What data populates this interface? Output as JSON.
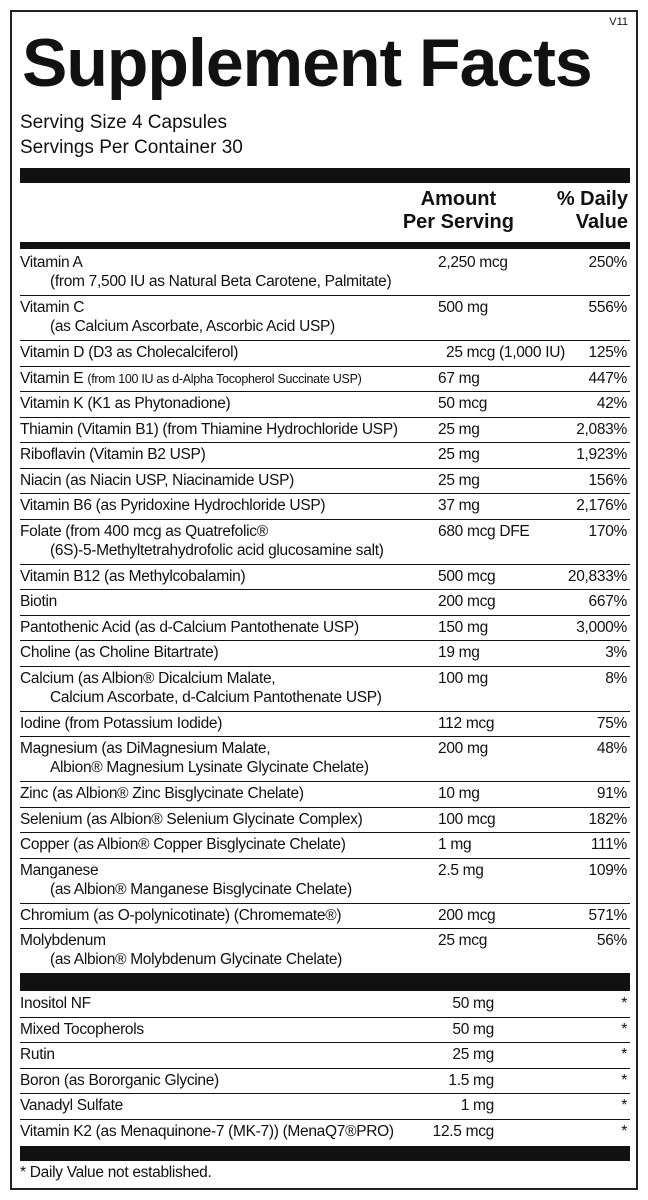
{
  "version": "V11",
  "title": "Supplement Facts",
  "serving_size": "Serving Size 4 Capsules",
  "servings_per_container": "Servings Per Container 30",
  "header": {
    "amount": [
      "Amount",
      "Per Serving"
    ],
    "daily_value": [
      "% Daily",
      "Value"
    ]
  },
  "nutrients": [
    {
      "name": "Vitamin A",
      "line2": "(from 7,500 IU as Natural Beta Carotene, Palmitate)",
      "amount": "2,250 mcg",
      "dv": "250%"
    },
    {
      "name": "Vitamin C",
      "line2": "(as Calcium Ascorbate, Ascorbic Acid USP)",
      "amount": "500 mg",
      "dv": "556%"
    },
    {
      "name": "Vitamin D (D3 as Cholecalciferol)",
      "amount": "25 mcg (1,000 IU)",
      "dv": "125%"
    },
    {
      "name": "Vitamin E",
      "name_note": "(from 100 IU as d-Alpha Tocopherol Succinate USP)",
      "amount": "67 mg",
      "dv": "447%"
    },
    {
      "name": "Vitamin K (K1 as Phytonadione)",
      "amount": "50 mcg",
      "dv": "42%"
    },
    {
      "name": "Thiamin (Vitamin B1) (from Thiamine Hydrochloride USP)",
      "amount": "25 mg",
      "dv": "2,083%"
    },
    {
      "name": "Riboflavin (Vitamin B2 USP)",
      "amount": "25 mg",
      "dv": "1,923%"
    },
    {
      "name": "Niacin (as Niacin USP, Niacinamide USP)",
      "amount": "25 mg",
      "dv": "156%"
    },
    {
      "name": "Vitamin B6 (as Pyridoxine Hydrochloride USP)",
      "amount": "37 mg",
      "dv": "2,176%"
    },
    {
      "name": "Folate (from 400 mcg as Quatrefolic®",
      "line2": "(6S)-5-Methyltetrahydrofolic acid glucosamine salt)",
      "amount": "680 mcg DFE",
      "dv": "170%"
    },
    {
      "name": "Vitamin B12 (as Methylcobalamin)",
      "amount": "500 mcg",
      "dv": "20,833%"
    },
    {
      "name": "Biotin",
      "amount": "200 mcg",
      "dv": "667%"
    },
    {
      "name": "Pantothenic Acid (as d-Calcium Pantothenate USP)",
      "amount": "150 mg",
      "dv": "3,000%"
    },
    {
      "name": "Choline (as Choline Bitartrate)",
      "amount": "19 mg",
      "dv": "3%"
    },
    {
      "name": "Calcium (as Albion® Dicalcium Malate,",
      "line2": "Calcium Ascorbate, d-Calcium Pantothenate USP)",
      "amount": "100 mg",
      "dv": "8%"
    },
    {
      "name": "Iodine (from Potassium Iodide)",
      "amount": "112 mcg",
      "dv": "75%"
    },
    {
      "name": "Magnesium (as DiMagnesium Malate,",
      "line2": "Albion® Magnesium Lysinate Glycinate Chelate)",
      "amount": "200 mg",
      "dv": "48%"
    },
    {
      "name": "Zinc (as Albion® Zinc Bisglycinate Chelate)",
      "amount": "10 mg",
      "dv": "91%"
    },
    {
      "name": "Selenium (as Albion® Selenium Glycinate Complex)",
      "amount": "100 mcg",
      "dv": "182%"
    },
    {
      "name": "Copper (as Albion® Copper Bisglycinate Chelate)",
      "amount": "1 mg",
      "dv": "111%"
    },
    {
      "name": "Manganese",
      "line2": "(as Albion® Manganese Bisglycinate Chelate)",
      "amount": "2.5 mg",
      "dv": "109%"
    },
    {
      "name": "Chromium (as O-polynicotinate) (Chromemate®)",
      "amount": "200 mcg",
      "dv": "571%"
    },
    {
      "name": "Molybdenum",
      "line2": "(as Albion® Molybdenum Glycinate Chelate)",
      "amount": "25 mcg",
      "dv": "56%"
    }
  ],
  "other_ingredients": [
    {
      "name": "Inositol NF",
      "amount": "50 mg",
      "dv": "*"
    },
    {
      "name": "Mixed Tocopherols",
      "amount": "50 mg",
      "dv": "*"
    },
    {
      "name": "Rutin",
      "amount": "25 mg",
      "dv": "*"
    },
    {
      "name": "Boron (as Bororganic Glycine)",
      "amount": "1.5 mg",
      "dv": "*"
    },
    {
      "name": "Vanadyl Sulfate",
      "amount": "1 mg",
      "dv": "*"
    },
    {
      "name": "Vitamin K2 (as Menaquinone-7 (MK-7)) (MenaQ7®PRO)",
      "amount": "12.5 mcg",
      "dv": "*"
    }
  ],
  "footnote": "* Daily Value not established."
}
